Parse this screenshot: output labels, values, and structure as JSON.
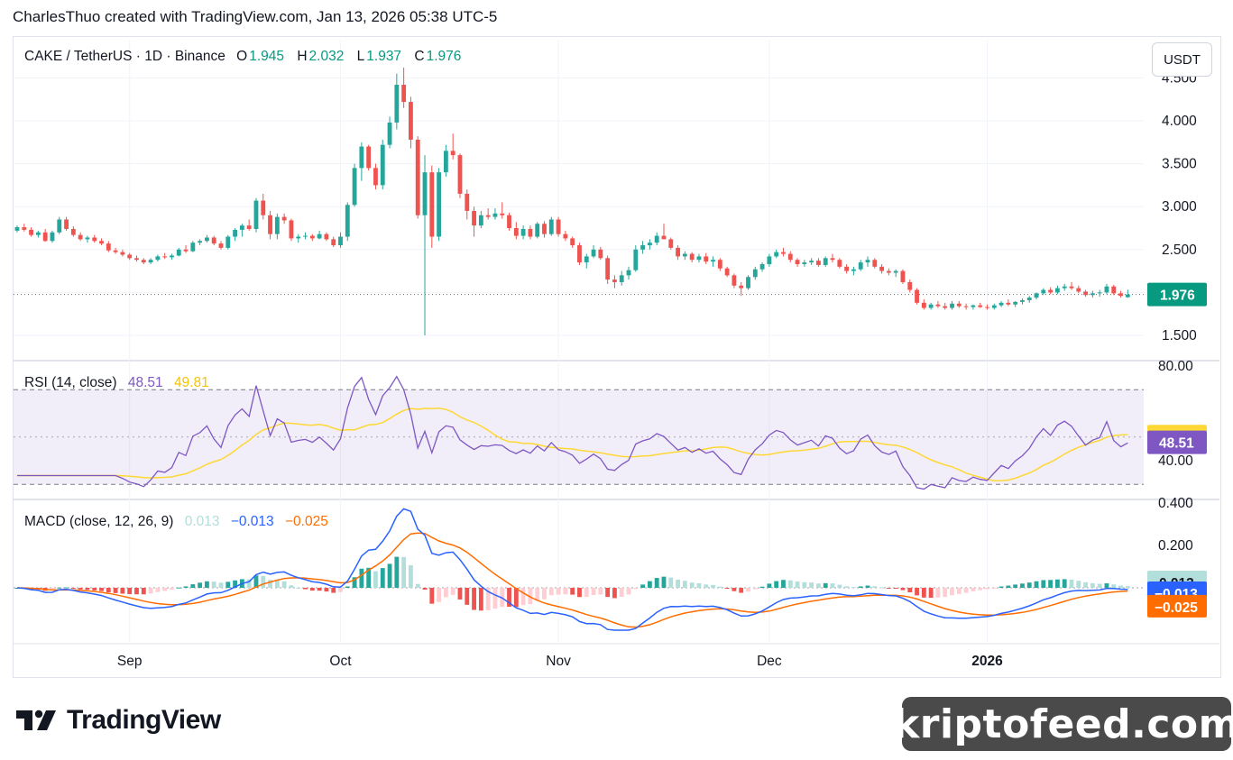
{
  "header": {
    "credit": "CharlesThuo created with TradingView.com, Jan 13, 2026 05:38 UTC-5"
  },
  "price_legend": {
    "symbol": "CAKE / TetherUS · 1D · Binance",
    "o_label": "O",
    "o_value": "1.945",
    "h_label": "H",
    "h_value": "2.032",
    "l_label": "L",
    "l_value": "1.937",
    "c_label": "C",
    "c_value": "1.976"
  },
  "currency_button": "USDT",
  "rsi_legend": {
    "name": "RSI (14, close)",
    "rsi_value": "48.51",
    "ma_value": "49.81"
  },
  "macd_legend": {
    "name": "MACD (close, 12, 26, 9)",
    "hist_value": "0.013",
    "macd_value": "−0.013",
    "signal_value": "−0.025"
  },
  "price_axis": {
    "ticks": [
      "4.500",
      "4.000",
      "3.500",
      "3.000",
      "2.500",
      "1.500"
    ],
    "last_price_label": "1.976"
  },
  "rsi_axis": {
    "ticks": [
      "80.00",
      "40.00"
    ],
    "ma_label": "49.81",
    "rsi_label": "48.51"
  },
  "macd_axis": {
    "ticks": [
      "0.400",
      "0.200"
    ],
    "hist_label": "0.013",
    "macd_label": "−0.013",
    "signal_label": "−0.025"
  },
  "time_axis": [
    "Sep",
    "Oct",
    "Nov",
    "Dec",
    "2026"
  ],
  "colors": {
    "up": "#26a69a",
    "down": "#ef5350",
    "rsi": "#7e57c2",
    "rsi_ma": "#fdd835",
    "macd": "#2962ff",
    "signal": "#ff6d00",
    "hist_up_light": "#b2dfdb",
    "hist_down_light": "#ffcdd2"
  },
  "branding": {
    "logo_text": "TradingView",
    "watermark": "kriptofeed.com"
  },
  "chart_data": {
    "type": "candlestick",
    "interval": "1D",
    "first_date": "2025-08-16",
    "last_date": "2026-01-13",
    "price": {
      "ohlc": [
        [
          2.72,
          2.78,
          2.7,
          2.76
        ],
        [
          2.76,
          2.8,
          2.71,
          2.73
        ],
        [
          2.73,
          2.76,
          2.65,
          2.67
        ],
        [
          2.67,
          2.72,
          2.64,
          2.7
        ],
        [
          2.7,
          2.74,
          2.59,
          2.6
        ],
        [
          2.6,
          2.72,
          2.58,
          2.7
        ],
        [
          2.7,
          2.88,
          2.68,
          2.85
        ],
        [
          2.85,
          2.88,
          2.72,
          2.74
        ],
        [
          2.74,
          2.77,
          2.65,
          2.67
        ],
        [
          2.67,
          2.7,
          2.6,
          2.62
        ],
        [
          2.62,
          2.66,
          2.58,
          2.64
        ],
        [
          2.64,
          2.67,
          2.58,
          2.6
        ],
        [
          2.6,
          2.63,
          2.55,
          2.57
        ],
        [
          2.57,
          2.6,
          2.47,
          2.49
        ],
        [
          2.49,
          2.52,
          2.45,
          2.47
        ],
        [
          2.47,
          2.5,
          2.42,
          2.44
        ],
        [
          2.44,
          2.46,
          2.38,
          2.4
        ],
        [
          2.4,
          2.43,
          2.36,
          2.38
        ],
        [
          2.38,
          2.4,
          2.33,
          2.35
        ],
        [
          2.35,
          2.4,
          2.33,
          2.38
        ],
        [
          2.38,
          2.44,
          2.36,
          2.42
        ],
        [
          2.42,
          2.46,
          2.39,
          2.41
        ],
        [
          2.41,
          2.45,
          2.38,
          2.43
        ],
        [
          2.43,
          2.52,
          2.42,
          2.5
        ],
        [
          2.5,
          2.55,
          2.46,
          2.48
        ],
        [
          2.48,
          2.6,
          2.47,
          2.58
        ],
        [
          2.58,
          2.62,
          2.55,
          2.6
        ],
        [
          2.6,
          2.67,
          2.58,
          2.64
        ],
        [
          2.64,
          2.66,
          2.55,
          2.57
        ],
        [
          2.57,
          2.6,
          2.5,
          2.52
        ],
        [
          2.52,
          2.67,
          2.5,
          2.65
        ],
        [
          2.65,
          2.75,
          2.6,
          2.73
        ],
        [
          2.73,
          2.8,
          2.65,
          2.78
        ],
        [
          2.78,
          2.85,
          2.72,
          2.74
        ],
        [
          2.74,
          3.1,
          2.7,
          3.07
        ],
        [
          3.07,
          3.15,
          2.85,
          2.9
        ],
        [
          2.9,
          2.95,
          2.62,
          2.68
        ],
        [
          2.68,
          2.92,
          2.62,
          2.88
        ],
        [
          2.88,
          2.92,
          2.8,
          2.84
        ],
        [
          2.84,
          2.86,
          2.6,
          2.63
        ],
        [
          2.63,
          2.68,
          2.58,
          2.65
        ],
        [
          2.65,
          2.7,
          2.62,
          2.66
        ],
        [
          2.66,
          2.68,
          2.6,
          2.63
        ],
        [
          2.63,
          2.72,
          2.62,
          2.68
        ],
        [
          2.68,
          2.7,
          2.6,
          2.62
        ],
        [
          2.62,
          2.65,
          2.53,
          2.55
        ],
        [
          2.55,
          2.7,
          2.52,
          2.65
        ],
        [
          2.65,
          3.05,
          2.6,
          3.02
        ],
        [
          3.02,
          3.5,
          3.0,
          3.45
        ],
        [
          3.45,
          3.75,
          3.3,
          3.7
        ],
        [
          3.7,
          3.72,
          3.42,
          3.45
        ],
        [
          3.45,
          3.5,
          3.2,
          3.25
        ],
        [
          3.25,
          3.78,
          3.2,
          3.72
        ],
        [
          3.72,
          4.05,
          3.68,
          3.98
        ],
        [
          3.98,
          4.55,
          3.9,
          4.42
        ],
        [
          4.42,
          4.62,
          4.15,
          4.22
        ],
        [
          4.22,
          4.28,
          3.68,
          3.78
        ],
        [
          3.78,
          3.82,
          2.86,
          2.9
        ],
        [
          2.9,
          3.6,
          1.5,
          3.4
        ],
        [
          3.4,
          3.48,
          2.52,
          2.65
        ],
        [
          2.65,
          3.45,
          2.6,
          3.4
        ],
        [
          3.4,
          3.72,
          3.35,
          3.65
        ],
        [
          3.65,
          3.85,
          3.55,
          3.6
        ],
        [
          3.6,
          3.62,
          3.1,
          3.15
        ],
        [
          3.15,
          3.2,
          2.85,
          2.95
        ],
        [
          2.95,
          3.0,
          2.65,
          2.78
        ],
        [
          2.78,
          2.95,
          2.75,
          2.9
        ],
        [
          2.9,
          2.98,
          2.85,
          2.88
        ],
        [
          2.88,
          2.98,
          2.85,
          2.92
        ],
        [
          2.92,
          3.05,
          2.86,
          2.9
        ],
        [
          2.9,
          2.93,
          2.72,
          2.75
        ],
        [
          2.75,
          2.82,
          2.62,
          2.66
        ],
        [
          2.66,
          2.78,
          2.62,
          2.74
        ],
        [
          2.74,
          2.78,
          2.62,
          2.65
        ],
        [
          2.65,
          2.82,
          2.63,
          2.8
        ],
        [
          2.8,
          2.83,
          2.64,
          2.68
        ],
        [
          2.68,
          2.88,
          2.66,
          2.85
        ],
        [
          2.85,
          2.88,
          2.65,
          2.68
        ],
        [
          2.68,
          2.72,
          2.6,
          2.63
        ],
        [
          2.63,
          2.65,
          2.52,
          2.55
        ],
        [
          2.55,
          2.58,
          2.32,
          2.35
        ],
        [
          2.35,
          2.45,
          2.28,
          2.42
        ],
        [
          2.42,
          2.55,
          2.4,
          2.5
        ],
        [
          2.5,
          2.53,
          2.38,
          2.4
        ],
        [
          2.4,
          2.43,
          2.1,
          2.15
        ],
        [
          2.15,
          2.2,
          2.05,
          2.12
        ],
        [
          2.12,
          2.25,
          2.08,
          2.2
        ],
        [
          2.2,
          2.3,
          2.15,
          2.26
        ],
        [
          2.26,
          2.55,
          2.24,
          2.5
        ],
        [
          2.5,
          2.6,
          2.45,
          2.55
        ],
        [
          2.55,
          2.62,
          2.5,
          2.58
        ],
        [
          2.58,
          2.7,
          2.55,
          2.66
        ],
        [
          2.66,
          2.8,
          2.62,
          2.62
        ],
        [
          2.62,
          2.64,
          2.5,
          2.52
        ],
        [
          2.52,
          2.55,
          2.38,
          2.42
        ],
        [
          2.42,
          2.48,
          2.38,
          2.45
        ],
        [
          2.45,
          2.47,
          2.35,
          2.38
        ],
        [
          2.38,
          2.45,
          2.35,
          2.42
        ],
        [
          2.42,
          2.46,
          2.33,
          2.36
        ],
        [
          2.36,
          2.42,
          2.3,
          2.38
        ],
        [
          2.38,
          2.4,
          2.25,
          2.28
        ],
        [
          2.28,
          2.3,
          2.18,
          2.2
        ],
        [
          2.2,
          2.22,
          2.05,
          2.08
        ],
        [
          2.08,
          2.12,
          1.96,
          2.05
        ],
        [
          2.05,
          2.2,
          2.03,
          2.18
        ],
        [
          2.18,
          2.3,
          2.15,
          2.27
        ],
        [
          2.27,
          2.35,
          2.24,
          2.33
        ],
        [
          2.33,
          2.45,
          2.3,
          2.42
        ],
        [
          2.42,
          2.5,
          2.4,
          2.47
        ],
        [
          2.47,
          2.52,
          2.42,
          2.45
        ],
        [
          2.45,
          2.48,
          2.35,
          2.38
        ],
        [
          2.38,
          2.4,
          2.3,
          2.33
        ],
        [
          2.33,
          2.38,
          2.3,
          2.35
        ],
        [
          2.35,
          2.4,
          2.32,
          2.37
        ],
        [
          2.37,
          2.4,
          2.3,
          2.32
        ],
        [
          2.32,
          2.42,
          2.3,
          2.4
        ],
        [
          2.4,
          2.45,
          2.35,
          2.38
        ],
        [
          2.38,
          2.4,
          2.28,
          2.3
        ],
        [
          2.3,
          2.33,
          2.22,
          2.25
        ],
        [
          2.25,
          2.3,
          2.2,
          2.27
        ],
        [
          2.27,
          2.38,
          2.25,
          2.35
        ],
        [
          2.35,
          2.42,
          2.3,
          2.38
        ],
        [
          2.38,
          2.4,
          2.28,
          2.3
        ],
        [
          2.3,
          2.33,
          2.22,
          2.25
        ],
        [
          2.25,
          2.28,
          2.2,
          2.23
        ],
        [
          2.23,
          2.27,
          2.18,
          2.25
        ],
        [
          2.25,
          2.27,
          2.1,
          2.12
        ],
        [
          2.12,
          2.15,
          2.0,
          2.03
        ],
        [
          2.03,
          2.05,
          1.86,
          1.88
        ],
        [
          1.88,
          1.92,
          1.8,
          1.82
        ],
        [
          1.82,
          1.88,
          1.8,
          1.86
        ],
        [
          1.86,
          1.9,
          1.82,
          1.84
        ],
        [
          1.84,
          1.88,
          1.8,
          1.82
        ],
        [
          1.82,
          1.9,
          1.8,
          1.87
        ],
        [
          1.87,
          1.9,
          1.82,
          1.84
        ],
        [
          1.84,
          1.87,
          1.8,
          1.83
        ],
        [
          1.83,
          1.86,
          1.8,
          1.85
        ],
        [
          1.85,
          1.88,
          1.82,
          1.83
        ],
        [
          1.83,
          1.86,
          1.8,
          1.82
        ],
        [
          1.82,
          1.87,
          1.8,
          1.85
        ],
        [
          1.85,
          1.9,
          1.83,
          1.88
        ],
        [
          1.88,
          1.92,
          1.84,
          1.86
        ],
        [
          1.86,
          1.9,
          1.83,
          1.89
        ],
        [
          1.89,
          1.93,
          1.86,
          1.91
        ],
        [
          1.91,
          1.96,
          1.88,
          1.94
        ],
        [
          1.94,
          2.0,
          1.92,
          1.99
        ],
        [
          1.99,
          2.05,
          1.97,
          2.03
        ],
        [
          2.03,
          2.06,
          1.98,
          2.0
        ],
        [
          2.0,
          2.08,
          1.98,
          2.05
        ],
        [
          2.05,
          2.1,
          2.02,
          2.07
        ],
        [
          2.07,
          2.12,
          2.03,
          2.05
        ],
        [
          2.05,
          2.08,
          1.99,
          2.01
        ],
        [
          2.01,
          2.03,
          1.95,
          1.97
        ],
        [
          1.97,
          2.02,
          1.94,
          1.99
        ],
        [
          1.99,
          2.03,
          1.95,
          2.0
        ],
        [
          2.0,
          2.1,
          1.98,
          2.07
        ],
        [
          2.07,
          2.09,
          1.97,
          1.99
        ],
        [
          1.99,
          2.02,
          1.94,
          1.96
        ],
        [
          1.945,
          2.032,
          1.937,
          1.976
        ]
      ],
      "last_close": 1.976
    },
    "rsi": {
      "period": 14,
      "ylim": [
        28,
        82
      ],
      "bands": [
        70,
        30
      ],
      "middle": 50,
      "last": 48.51,
      "ma_last": 49.81
    },
    "macd": {
      "fast": 12,
      "slow": 26,
      "signal": 9,
      "ylim": [
        -0.2,
        0.42
      ],
      "last_hist": 0.013,
      "last_macd": -0.013,
      "last_signal": -0.025
    },
    "time_labels": [
      "Sep",
      "Oct",
      "Nov",
      "Dec",
      "2026"
    ]
  }
}
